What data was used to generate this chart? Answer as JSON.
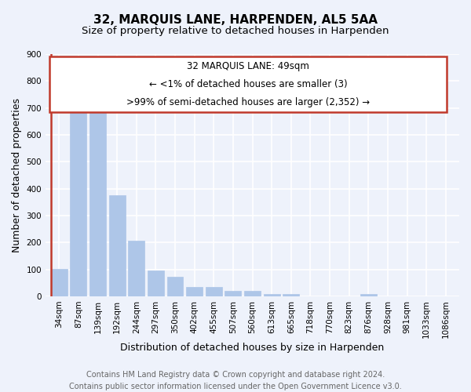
{
  "title": "32, MARQUIS LANE, HARPENDEN, AL5 5AA",
  "subtitle": "Size of property relative to detached houses in Harpenden",
  "xlabel": "Distribution of detached houses by size in Harpenden",
  "ylabel": "Number of detached properties",
  "categories": [
    "34sqm",
    "87sqm",
    "139sqm",
    "192sqm",
    "244sqm",
    "297sqm",
    "350sqm",
    "402sqm",
    "455sqm",
    "507sqm",
    "560sqm",
    "613sqm",
    "665sqm",
    "718sqm",
    "770sqm",
    "823sqm",
    "876sqm",
    "928sqm",
    "981sqm",
    "1033sqm",
    "1086sqm"
  ],
  "values": [
    103,
    705,
    705,
    375,
    207,
    95,
    72,
    35,
    35,
    20,
    20,
    10,
    10,
    0,
    0,
    0,
    10,
    0,
    0,
    0,
    0
  ],
  "bar_color": "#aec6e8",
  "highlight_color": "#c0392b",
  "annotation_line1": "32 MARQUIS LANE: 49sqm",
  "annotation_line2": "← <1% of detached houses are smaller (3)",
  "annotation_line3": ">99% of semi-detached houses are larger (2,352) →",
  "ylim": [
    0,
    900
  ],
  "yticks": [
    0,
    100,
    200,
    300,
    400,
    500,
    600,
    700,
    800,
    900
  ],
  "footer_line1": "Contains HM Land Registry data © Crown copyright and database right 2024.",
  "footer_line2": "Contains public sector information licensed under the Open Government Licence v3.0.",
  "background_color": "#eef2fb",
  "grid_color": "#ffffff",
  "title_fontsize": 11,
  "subtitle_fontsize": 9.5,
  "axis_label_fontsize": 9,
  "tick_fontsize": 7.5,
  "footer_fontsize": 7,
  "red_line_x": -0.425
}
